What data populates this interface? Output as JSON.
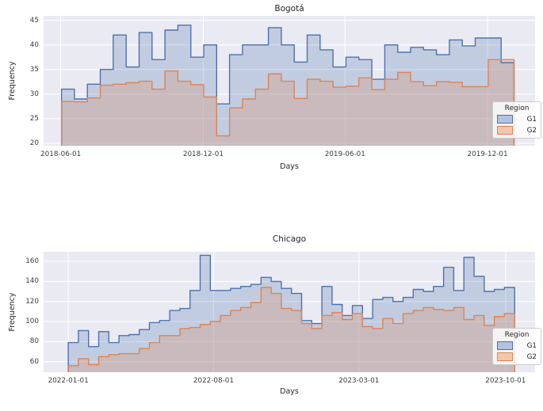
{
  "style": {
    "figure_bg": "#ffffff",
    "axes_bg": "#eaeaf2",
    "grid_color": "#ffffff",
    "tick_text_color": "#3b3b3b",
    "title_color": "#262626"
  },
  "chart_data": [
    {
      "type": "step-area-histogram",
      "title": "Bogotá",
      "xlabel": "Days",
      "ylabel": "Frequency",
      "ylim": [
        19.5,
        45.9
      ],
      "yticks": [
        20,
        25,
        30,
        35,
        40,
        45
      ],
      "xticks": [
        "2018-06-01",
        "2018-12-01",
        "2019-06-01",
        "2019-12-01"
      ],
      "x_domain": [
        "2018-05-10",
        "2020-01-31"
      ],
      "grid": true,
      "legend": {
        "title": "Region",
        "position": "lower right"
      },
      "bins": {
        "start": "2018-06-02",
        "width_days": 16.6
      },
      "series": [
        {
          "name": "G1",
          "color": "#4c72b0",
          "fill": "rgba(76,114,176,0.25)",
          "legend_fill": "#b3c2de",
          "values": [
            31,
            29,
            32,
            35,
            42,
            35.5,
            42.5,
            37,
            43,
            44,
            37.5,
            40,
            28,
            38,
            40,
            40,
            43.5,
            40,
            36.5,
            42,
            39,
            35.5,
            37.5,
            37,
            33,
            40,
            38.5,
            39.5,
            39,
            38,
            41,
            39.8,
            41.4,
            41.4,
            36.4
          ]
        },
        {
          "name": "G2",
          "color": "#dd8452",
          "fill": "rgba(221,132,82,0.25)",
          "legend_fill": "#f2c7ad",
          "values": [
            28.5,
            28.4,
            29.2,
            31.8,
            32,
            32.3,
            32.6,
            31,
            34.7,
            32.6,
            31.9,
            29.4,
            21.5,
            27.2,
            29,
            31,
            34.1,
            32.6,
            29.1,
            33,
            32.6,
            31.4,
            31.6,
            33.3,
            30.9,
            33,
            34.4,
            32.5,
            31.7,
            32.5,
            32.4,
            31.5,
            31.5,
            37,
            37
          ]
        }
      ]
    },
    {
      "type": "step-area-histogram",
      "title": "Chicago",
      "xlabel": "Days",
      "ylabel": "Frequency",
      "ylim": [
        49.5,
        169.5
      ],
      "yticks": [
        60,
        80,
        100,
        120,
        140,
        160
      ],
      "xticks": [
        "2022-01-01",
        "2022-08-01",
        "2023-03-01",
        "2023-10-01"
      ],
      "x_domain": [
        "2021-11-26",
        "2023-11-13"
      ],
      "grid": true,
      "legend": {
        "title": "Region",
        "position": "lower right"
      },
      "bins": {
        "start": "2022-01-01",
        "width_days": 14.8
      },
      "series": [
        {
          "name": "G1",
          "color": "#4c72b0",
          "fill": "rgba(76,114,176,0.25)",
          "legend_fill": "#b3c2de",
          "values": [
            79,
            91,
            75,
            90,
            79,
            86,
            87,
            92,
            99,
            101,
            111,
            113,
            131,
            166,
            131,
            131,
            133,
            135,
            137,
            144,
            140,
            133,
            128,
            101,
            98,
            135,
            117,
            106,
            116,
            103,
            122,
            124,
            120,
            124,
            132,
            130,
            135,
            154,
            131,
            164,
            145,
            130,
            132,
            134
          ]
        },
        {
          "name": "G2",
          "color": "#dd8452",
          "fill": "rgba(221,132,82,0.25)",
          "legend_fill": "#f2c7ad",
          "values": [
            56,
            63,
            57,
            65,
            67,
            68,
            68,
            73,
            79,
            86,
            86,
            93,
            94,
            97,
            100,
            106,
            111,
            114,
            119,
            134,
            128,
            113,
            111,
            98,
            93,
            106,
            109,
            102,
            108,
            95,
            93,
            103,
            98,
            108,
            111,
            114,
            112,
            111,
            114,
            102,
            106,
            96,
            105,
            108
          ]
        }
      ]
    }
  ]
}
